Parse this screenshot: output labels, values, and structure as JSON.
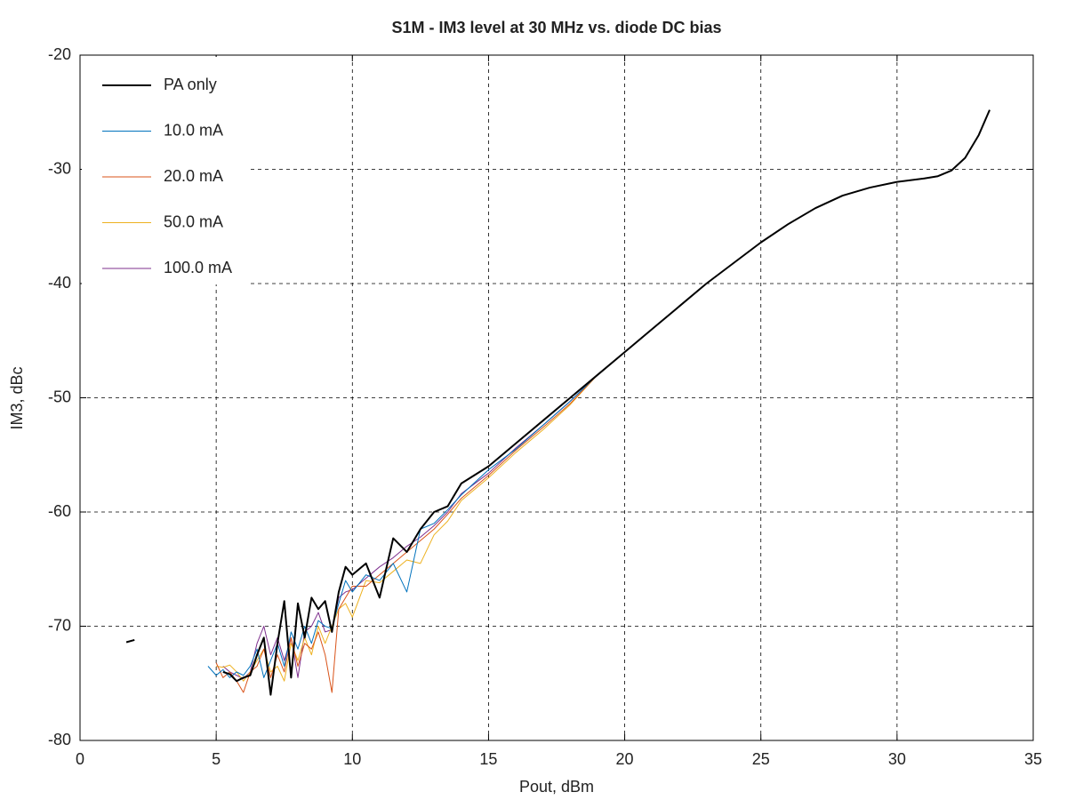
{
  "chart_data": {
    "type": "line",
    "title": "S1M - IM3 level at 30 MHz vs. diode DC bias",
    "x_label": "Pout, dBm",
    "y_label": "IM3, dBc",
    "xlim": [
      0,
      35
    ],
    "xticks": [
      0,
      5,
      10,
      15,
      20,
      25,
      30,
      35
    ],
    "ylim": [
      -80,
      -20
    ],
    "yticks": [
      -20,
      -30,
      -40,
      -50,
      -60,
      -70,
      -80
    ],
    "grid": true,
    "legend": "top-left",
    "x": [
      1.7,
      2.0,
      4.7,
      5.0,
      5.25,
      5.5,
      5.75,
      6.0,
      6.25,
      6.5,
      6.75,
      7.0,
      7.25,
      7.5,
      7.75,
      8.0,
      8.25,
      8.5,
      8.75,
      9.0,
      9.25,
      9.5,
      9.75,
      10.0,
      10.5,
      11.0,
      11.5,
      12.0,
      12.5,
      13.0,
      13.5,
      14.0,
      15,
      16,
      17,
      18,
      19,
      20,
      21,
      22,
      23,
      24,
      25,
      26,
      27,
      28,
      29,
      30,
      31,
      31.5,
      32,
      32.5,
      33,
      33.4
    ],
    "series": [
      {
        "name": "PA only",
        "color": "#000000",
        "values": [
          -71.4,
          -71.2,
          null,
          null,
          -74.0,
          -74.2,
          -74.8,
          -74.5,
          -74.3,
          -72.5,
          -71.0,
          -76.0,
          -71.5,
          -67.8,
          -74.5,
          -68.0,
          -71.0,
          -67.5,
          -68.5,
          -67.8,
          -70.5,
          -67.0,
          -64.8,
          -65.5,
          -64.5,
          -67.5,
          -62.3,
          -63.5,
          -61.5,
          -60.0,
          -59.5,
          -57.5,
          -56.0,
          -54.0,
          -52.0,
          -50.0,
          -48,
          -46,
          -44,
          -42,
          -40,
          -38.2,
          -36.4,
          -34.8,
          -33.4,
          -32.3,
          -31.6,
          -31.1,
          -30.8,
          -30.6,
          -30.1,
          -29,
          -27,
          -24.8
        ]
      },
      {
        "name": "10.0 mA",
        "color": "#0072bd",
        "values": [
          null,
          null,
          -73.5,
          -74.3,
          -73.8,
          -74.5,
          -74.0,
          -74.3,
          -73.5,
          -72.0,
          -74.5,
          -73.0,
          -71.5,
          -73.5,
          -70.5,
          -72.0,
          -70.0,
          -71.5,
          -69.5,
          -70.0,
          -70.2,
          -68.0,
          -66.0,
          -67.0,
          -65.5,
          -66.0,
          -64.5,
          -67.0,
          -61.5,
          -61.0,
          -59.8,
          -58.5,
          -56.3,
          -54.5,
          -52.4,
          -50.3,
          -48,
          -46,
          -44,
          -42,
          -40,
          -38.2,
          -36.4,
          -34.8,
          -33.4,
          -32.3,
          -31.6,
          -31.1,
          -30.8,
          -30.6,
          -30.1,
          -29,
          -27,
          -24.8
        ]
      },
      {
        "name": "20.0 mA",
        "color": "#d95319",
        "values": [
          null,
          null,
          null,
          -73.2,
          -74.5,
          -74.0,
          -74.8,
          -75.8,
          -74.0,
          -73.5,
          -72.0,
          -74.5,
          -72.5,
          -74.0,
          -71.0,
          -73.5,
          -71.5,
          -72.0,
          -70.5,
          -72.5,
          -75.8,
          -68.5,
          -67.5,
          -66.5,
          -66.5,
          -65.5,
          -64.5,
          -63.5,
          -62.5,
          -61.5,
          -60.2,
          -58.8,
          -56.8,
          -54.6,
          -52.6,
          -50.5,
          -48,
          -46,
          -44,
          -42,
          -40,
          -38.2,
          -36.4,
          -34.8,
          -33.4,
          -32.3,
          -31.6,
          -31.1,
          -30.8,
          -30.6,
          -30.1,
          -29,
          -27,
          -24.8
        ]
      },
      {
        "name": "50.0 mA",
        "color": "#edb120",
        "values": [
          null,
          null,
          null,
          -73.5,
          -73.6,
          -73.4,
          -74.0,
          -74.8,
          -74.0,
          -73.0,
          -72.0,
          -74.0,
          -73.5,
          -74.8,
          -71.5,
          -73.0,
          -71.0,
          -72.5,
          -70.0,
          -71.5,
          -70.0,
          -68.5,
          -68.0,
          -69.2,
          -66.0,
          -66.2,
          -65.2,
          -64.2,
          -64.5,
          -62.0,
          -60.8,
          -59.0,
          -57.0,
          -54.8,
          -52.8,
          -50.6,
          -48,
          -46,
          -44,
          -42,
          -40,
          -38.2,
          -36.4,
          -34.8,
          -33.4,
          -32.3,
          -31.6,
          -31.1,
          -30.8,
          -30.6,
          -30.1,
          -29,
          -27,
          -24.8
        ]
      },
      {
        "name": "100.0 mA",
        "color": "#7e2f8e",
        "values": [
          null,
          null,
          null,
          null,
          -73.5,
          -74.0,
          -74.3,
          -74.6,
          -74.0,
          -71.5,
          -70.0,
          -72.5,
          -71.0,
          -73.0,
          -71.0,
          -74.5,
          -70.5,
          -70.0,
          -68.8,
          -70.5,
          -70.3,
          -67.5,
          -67.0,
          -66.8,
          -65.8,
          -64.8,
          -64.0,
          -63.0,
          -62.2,
          -61.2,
          -60.0,
          -58.4,
          -56.6,
          -54.4,
          -52.4,
          -50.3,
          -48,
          -46,
          -44,
          -42,
          -40,
          -38.2,
          -36.4,
          -34.8,
          -33.4,
          -32.3,
          -31.6,
          -31.1,
          -30.8,
          -30.6,
          -30.1,
          -29,
          -27,
          -24.8
        ]
      }
    ]
  }
}
